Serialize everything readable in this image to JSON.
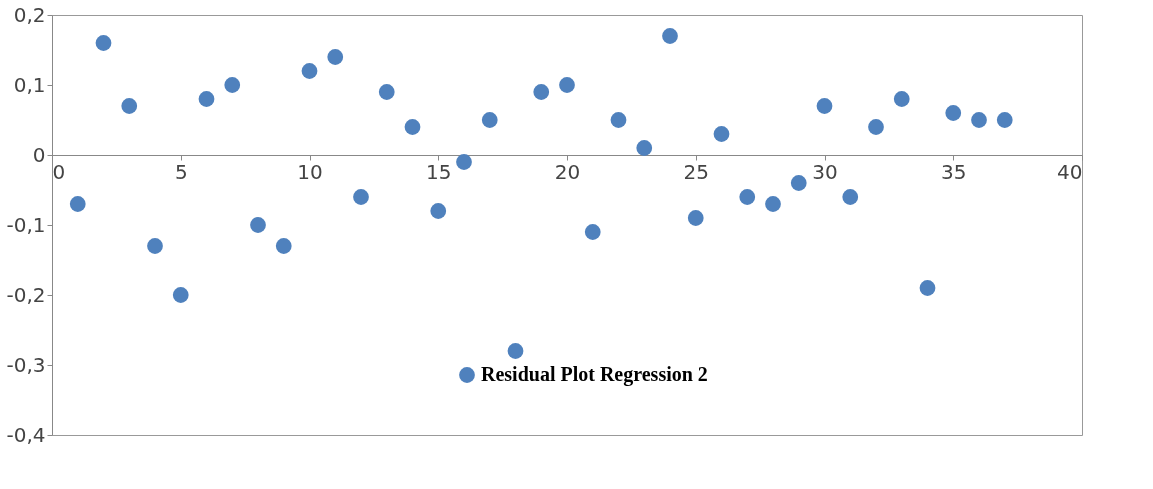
{
  "chart_data": {
    "type": "scatter",
    "marker": "circle",
    "legend": "bottom",
    "grid": false,
    "x": [
      1,
      2,
      3,
      4,
      5,
      6,
      7,
      8,
      9,
      10,
      11,
      12,
      13,
      14,
      15,
      16,
      17,
      18,
      19,
      20,
      21,
      22,
      23,
      24,
      25,
      26,
      27,
      28,
      29,
      30,
      31,
      32,
      33,
      34,
      35,
      36,
      37
    ],
    "series": [
      {
        "name": "Residual Plot Regression 2",
        "color": "#4f81bd",
        "values": [
          -0.07,
          0.16,
          0.07,
          -0.13,
          -0.2,
          0.08,
          0.1,
          -0.1,
          -0.13,
          0.12,
          0.14,
          -0.06,
          0.09,
          0.04,
          -0.08,
          -0.01,
          0.05,
          -0.28,
          0.09,
          0.1,
          -0.11,
          0.05,
          0.01,
          0.17,
          -0.09,
          0.03,
          -0.06,
          -0.07,
          -0.04,
          0.07,
          -0.06,
          0.04,
          0.08,
          -0.19,
          0.06,
          0.05,
          0.05
        ]
      }
    ],
    "xlim": [
      0,
      40
    ],
    "xticks": [
      0,
      5,
      10,
      15,
      20,
      25,
      30,
      35,
      40
    ],
    "ylim": [
      -0.4,
      0.2
    ],
    "yticks": [
      {
        "value": -0.4,
        "label": "-0,4"
      },
      {
        "value": -0.3,
        "label": "-0,3"
      },
      {
        "value": -0.2,
        "label": "-0,2"
      },
      {
        "value": -0.1,
        "label": "-0,1"
      },
      {
        "value": 0,
        "label": "0"
      },
      {
        "value": 0.1,
        "label": "0,1"
      },
      {
        "value": 0.2,
        "label": "0,2"
      }
    ]
  }
}
